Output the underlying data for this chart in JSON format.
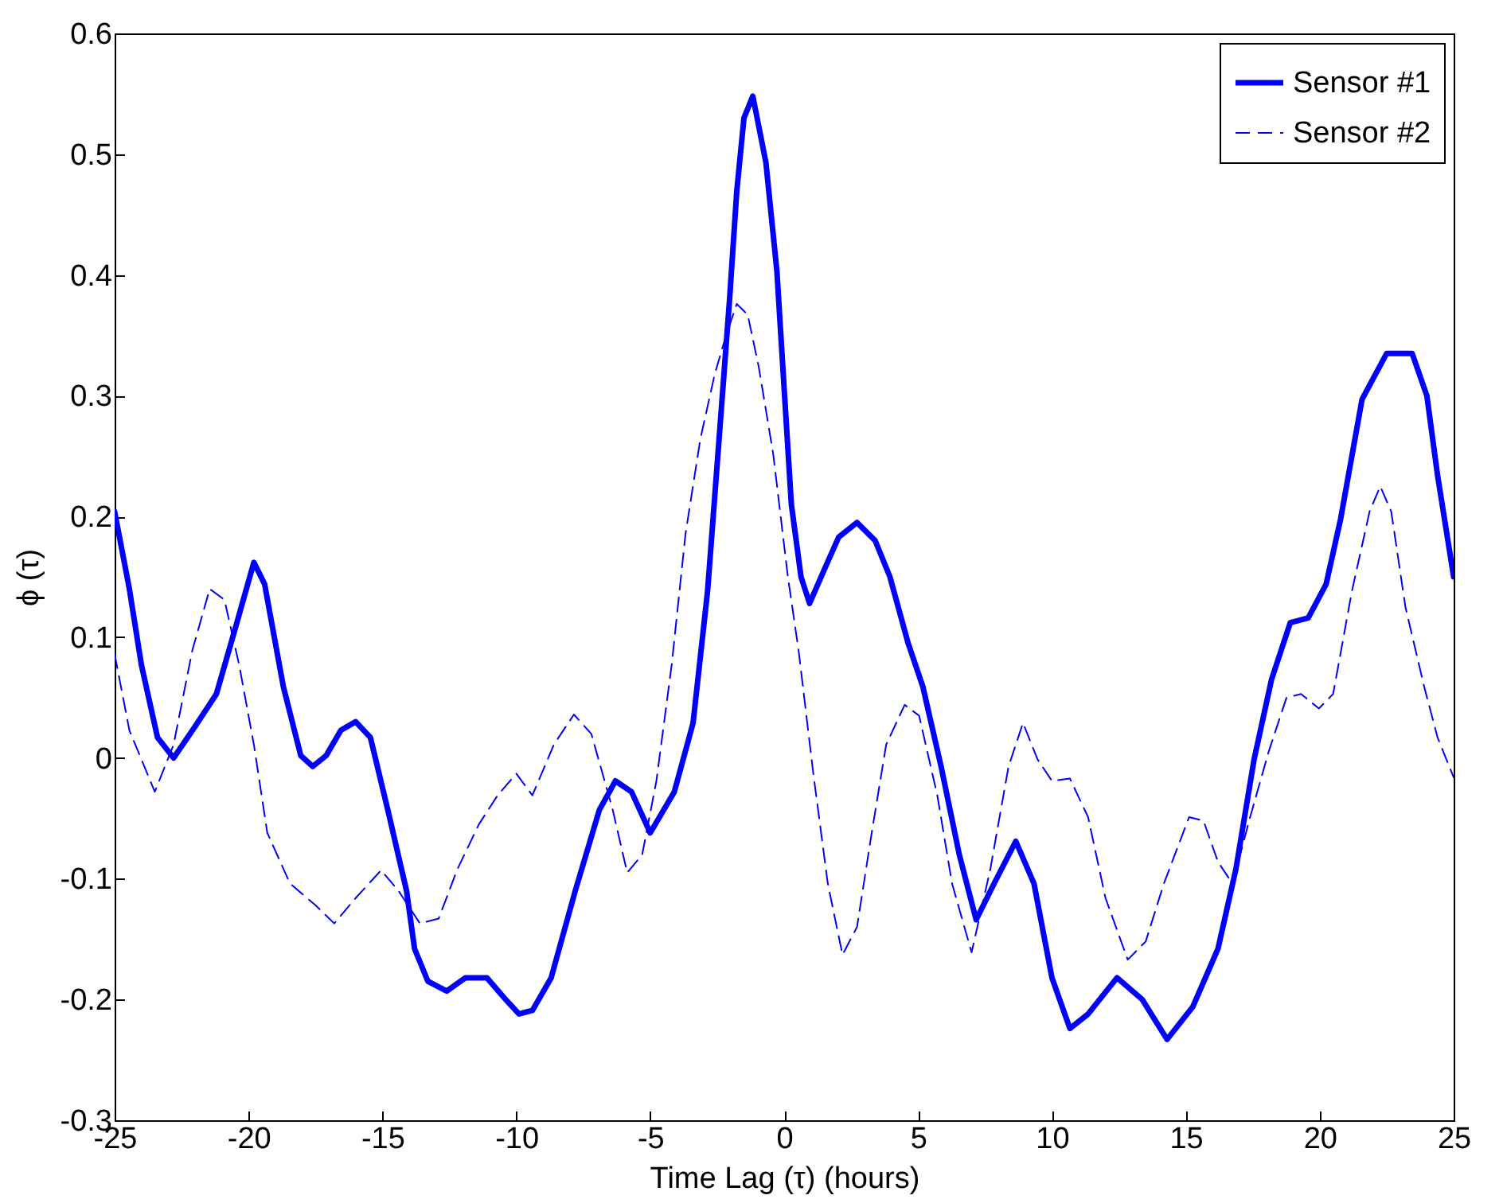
{
  "chart_data": {
    "type": "line",
    "xlabel": "Time Lag (τ) (hours)",
    "ylabel": "ϕ (τ)",
    "xlim": [
      -25,
      25
    ],
    "ylim": [
      -0.3,
      0.6
    ],
    "xticks": [
      -25,
      -20,
      -15,
      -10,
      -5,
      0,
      5,
      10,
      15,
      20,
      25
    ],
    "yticks": [
      -0.3,
      -0.2,
      -0.1,
      {
        "value": 0,
        "label": "0"
      },
      0.1,
      0.2,
      0.3,
      0.4,
      0.5,
      0.6
    ],
    "grid": false,
    "legend": "top right",
    "marker": "none",
    "series": [
      {
        "name": "Sensor #1",
        "color": "#0000ff",
        "line_style": "solid",
        "x": [
          -25,
          -24.45,
          -24.0,
          -23.4,
          -22.8,
          -22.0,
          -21.2,
          -20.5,
          -19.8,
          -19.4,
          -18.7,
          -18.05,
          -17.6,
          -17.1,
          -16.55,
          -16.0,
          -15.45,
          -14.8,
          -14.1,
          -13.8,
          -13.3,
          -12.6,
          -11.9,
          -11.1,
          -10.4,
          -9.9,
          -9.4,
          -8.7,
          -7.8,
          -6.9,
          -6.3,
          -5.7,
          -5.0,
          -4.1,
          -3.4,
          -2.86,
          -2.45,
          -2.04,
          -1.77,
          -1.5,
          -1.17,
          -0.68,
          -0.27,
          0,
          0.27,
          0.63,
          0.95,
          1.5,
          2.04,
          2.72,
          3.4,
          3.95,
          4.63,
          5.18,
          5.86,
          6.54,
          7.17,
          7.84,
          8.65,
          9.33,
          10,
          10.67,
          11.35,
          12.43,
          13.37,
          14.3,
          15.26,
          16.2,
          16.87,
          17.55,
          18.2,
          18.9,
          19.57,
          20.24,
          20.78,
          21.58,
          22.5,
          23.45,
          24.0,
          24.4,
          25
        ],
        "values": [
          0.204,
          0.14,
          0.077,
          0.017,
          0.0,
          0.026,
          0.053,
          0.107,
          0.162,
          0.144,
          0.059,
          0.002,
          -0.007,
          0.002,
          0.023,
          0.03,
          0.017,
          -0.043,
          -0.11,
          -0.158,
          -0.185,
          -0.193,
          -0.182,
          -0.182,
          -0.2,
          -0.212,
          -0.209,
          -0.182,
          -0.11,
          -0.043,
          -0.019,
          -0.028,
          -0.062,
          -0.028,
          0.029,
          0.138,
          0.258,
          0.379,
          0.469,
          0.53,
          0.548,
          0.493,
          0.403,
          0.306,
          0.21,
          0.15,
          0.128,
          0.156,
          0.183,
          0.195,
          0.18,
          0.15,
          0.095,
          0.059,
          -0.007,
          -0.08,
          -0.134,
          -0.104,
          -0.069,
          -0.104,
          -0.182,
          -0.224,
          -0.212,
          -0.182,
          -0.2,
          -0.233,
          -0.206,
          -0.158,
          -0.092,
          -0.001,
          0.065,
          0.112,
          0.116,
          0.144,
          0.198,
          0.297,
          0.335,
          0.335,
          0.3,
          0.234,
          0.15
        ]
      },
      {
        "name": "Sensor #2",
        "color": "#0000ff",
        "line_style": "dashed",
        "x": [
          -25,
          -24.45,
          -23.5,
          -22.8,
          -22.1,
          -21.45,
          -20.9,
          -20.35,
          -19.8,
          -19.3,
          -18.45,
          -17.5,
          -16.8,
          -16.0,
          -15.05,
          -14.4,
          -13.6,
          -12.9,
          -12.2,
          -11.4,
          -10.7,
          -10.0,
          -9.4,
          -8.6,
          -7.85,
          -7.2,
          -6.4,
          -5.86,
          -5.3,
          -4.77,
          -4.2,
          -3.68,
          -3.13,
          -2.59,
          -2.18,
          -1.77,
          -1.36,
          -0.95,
          -0.41,
          0.14,
          0.54,
          1.09,
          1.63,
          2.18,
          2.72,
          3.27,
          3.81,
          4.5,
          5.04,
          5.72,
          6.27,
          7.0,
          7.7,
          8.38,
          8.92,
          9.46,
          10,
          10.67,
          11.35,
          12.0,
          12.83,
          13.5,
          14.18,
          15.12,
          15.66,
          16.2,
          16.74,
          17.4,
          18.09,
          18.76,
          19.3,
          19.97,
          20.5,
          21.2,
          21.86,
          22.26,
          22.67,
          23.2,
          23.9,
          24.4,
          25
        ],
        "values": [
          0.086,
          0.023,
          -0.028,
          0.011,
          0.089,
          0.14,
          0.131,
          0.077,
          0.011,
          -0.062,
          -0.104,
          -0.122,
          -0.137,
          -0.116,
          -0.093,
          -0.11,
          -0.137,
          -0.133,
          -0.092,
          -0.055,
          -0.031,
          -0.013,
          -0.031,
          0.011,
          0.036,
          0.02,
          -0.043,
          -0.095,
          -0.08,
          -0.019,
          0.077,
          0.186,
          0.264,
          0.318,
          0.349,
          0.376,
          0.367,
          0.324,
          0.252,
          0.15,
          0.089,
          -0.013,
          -0.104,
          -0.163,
          -0.14,
          -0.062,
          0.011,
          0.044,
          0.035,
          -0.031,
          -0.104,
          -0.161,
          -0.092,
          -0.007,
          0.029,
          -0.001,
          -0.019,
          -0.017,
          -0.049,
          -0.116,
          -0.167,
          -0.152,
          -0.104,
          -0.049,
          -0.052,
          -0.086,
          -0.104,
          -0.049,
          0.005,
          0.05,
          0.053,
          0.041,
          0.053,
          0.138,
          0.204,
          0.225,
          0.204,
          0.125,
          0.059,
          0.017,
          -0.016
        ]
      }
    ]
  }
}
